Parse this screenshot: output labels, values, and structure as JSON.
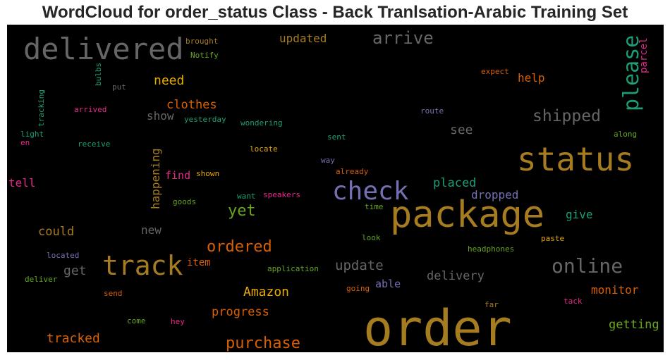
{
  "chart_data": {
    "type": "wordcloud",
    "title": "WordCloud for order_status Class - Back Tranlsation-Arabic Training Set",
    "background": "#000000",
    "words": [
      {
        "text": "order",
        "weight": 70,
        "color": "#a67c21"
      },
      {
        "text": "package",
        "weight": 52,
        "color": "#a67c21"
      },
      {
        "text": "status",
        "weight": 46,
        "color": "#a67c21"
      },
      {
        "text": "delivered",
        "weight": 42,
        "color": "#666666"
      },
      {
        "text": "track",
        "weight": 38,
        "color": "#a67c21"
      },
      {
        "text": "check",
        "weight": 36,
        "color": "#7570b3"
      },
      {
        "text": "please",
        "weight": 30,
        "color": "#1b9e77"
      },
      {
        "text": "online",
        "weight": 28,
        "color": "#666666"
      },
      {
        "text": "arrive",
        "weight": 24,
        "color": "#666666"
      },
      {
        "text": "shipped",
        "weight": 23,
        "color": "#666666"
      },
      {
        "text": "ordered",
        "weight": 22,
        "color": "#d95f02"
      },
      {
        "text": "purchase",
        "weight": 22,
        "color": "#d95f02"
      },
      {
        "text": "yet",
        "weight": 22,
        "color": "#66a61e"
      },
      {
        "text": "update",
        "weight": 19,
        "color": "#666666"
      },
      {
        "text": "need",
        "weight": 18,
        "color": "#e6ab02"
      },
      {
        "text": "Amazon",
        "weight": 18,
        "color": "#e6ab02"
      },
      {
        "text": "tracked",
        "weight": 18,
        "color": "#d95f02"
      },
      {
        "text": "get",
        "weight": 18,
        "color": "#666666"
      },
      {
        "text": "see",
        "weight": 18,
        "color": "#666666"
      },
      {
        "text": "placed",
        "weight": 17,
        "color": "#1b9e77"
      },
      {
        "text": "delivery",
        "weight": 17,
        "color": "#666666"
      },
      {
        "text": "clothes",
        "weight": 17,
        "color": "#d95f02"
      },
      {
        "text": "progress",
        "weight": 17,
        "color": "#d95f02"
      },
      {
        "text": "getting",
        "weight": 17,
        "color": "#66a61e"
      },
      {
        "text": "could",
        "weight": 17,
        "color": "#a67c21"
      },
      {
        "text": "monitor",
        "weight": 16,
        "color": "#d95f02"
      },
      {
        "text": "help",
        "weight": 16,
        "color": "#d95f02"
      },
      {
        "text": "new",
        "weight": 16,
        "color": "#666666"
      },
      {
        "text": "updated",
        "weight": 16,
        "color": "#a67c21"
      },
      {
        "text": "dropped",
        "weight": 16,
        "color": "#7570b3"
      },
      {
        "text": "give",
        "weight": 16,
        "color": "#1b9e77"
      },
      {
        "text": "show",
        "weight": 16,
        "color": "#666666"
      },
      {
        "text": "tell",
        "weight": 16,
        "color": "#e7298a"
      },
      {
        "text": "happening",
        "weight": 16,
        "color": "#a67c21"
      },
      {
        "text": "find",
        "weight": 15,
        "color": "#e7298a"
      },
      {
        "text": "able",
        "weight": 15,
        "color": "#7570b3"
      },
      {
        "text": "item",
        "weight": 14,
        "color": "#d95f02"
      },
      {
        "text": "parcel",
        "weight": 14,
        "color": "#e7298a"
      },
      {
        "text": "tracking",
        "weight": 11,
        "color": "#1b9e77"
      },
      {
        "text": "brought",
        "weight": 11,
        "color": "#a67c21"
      },
      {
        "text": "Notify",
        "weight": 11,
        "color": "#66a61e"
      },
      {
        "text": "bulbs",
        "weight": 11,
        "color": "#1b9e77"
      },
      {
        "text": "put",
        "weight": 11,
        "color": "#666666"
      },
      {
        "text": "expect",
        "weight": 11,
        "color": "#d95f02"
      },
      {
        "text": "route",
        "weight": 11,
        "color": "#7570b3"
      },
      {
        "text": "arrived",
        "weight": 11,
        "color": "#e7298a"
      },
      {
        "text": "yesterday",
        "weight": 11,
        "color": "#1b9e77"
      },
      {
        "text": "wondering",
        "weight": 11,
        "color": "#1b9e77"
      },
      {
        "text": "light",
        "weight": 11,
        "color": "#1b9e77"
      },
      {
        "text": "en",
        "weight": 11,
        "color": "#e7298a"
      },
      {
        "text": "receive",
        "weight": 11,
        "color": "#1b9e77"
      },
      {
        "text": "sent",
        "weight": 11,
        "color": "#1b9e77"
      },
      {
        "text": "along",
        "weight": 11,
        "color": "#66a61e"
      },
      {
        "text": "locate",
        "weight": 11,
        "color": "#e6ab02"
      },
      {
        "text": "way",
        "weight": 11,
        "color": "#7570b3"
      },
      {
        "text": "already",
        "weight": 11,
        "color": "#d95f02"
      },
      {
        "text": "shown",
        "weight": 11,
        "color": "#e6ab02"
      },
      {
        "text": "want",
        "weight": 11,
        "color": "#1b9e77"
      },
      {
        "text": "speakers",
        "weight": 11,
        "color": "#e7298a"
      },
      {
        "text": "goods",
        "weight": 11,
        "color": "#66a61e"
      },
      {
        "text": "time",
        "weight": 11,
        "color": "#66a61e"
      },
      {
        "text": "look",
        "weight": 11,
        "color": "#66a61e"
      },
      {
        "text": "paste",
        "weight": 11,
        "color": "#e6ab02"
      },
      {
        "text": "located",
        "weight": 11,
        "color": "#7570b3"
      },
      {
        "text": "headphones",
        "weight": 11,
        "color": "#66a61e"
      },
      {
        "text": "application",
        "weight": 11,
        "color": "#66a61e"
      },
      {
        "text": "deliver",
        "weight": 11,
        "color": "#66a61e"
      },
      {
        "text": "send",
        "weight": 11,
        "color": "#d95f02"
      },
      {
        "text": "going",
        "weight": 11,
        "color": "#d95f02"
      },
      {
        "text": "far",
        "weight": 11,
        "color": "#a67c21"
      },
      {
        "text": "tack",
        "weight": 11,
        "color": "#e7298a"
      },
      {
        "text": "come",
        "weight": 11,
        "color": "#66a61e"
      },
      {
        "text": "hey",
        "weight": 11,
        "color": "#e7298a"
      }
    ]
  }
}
